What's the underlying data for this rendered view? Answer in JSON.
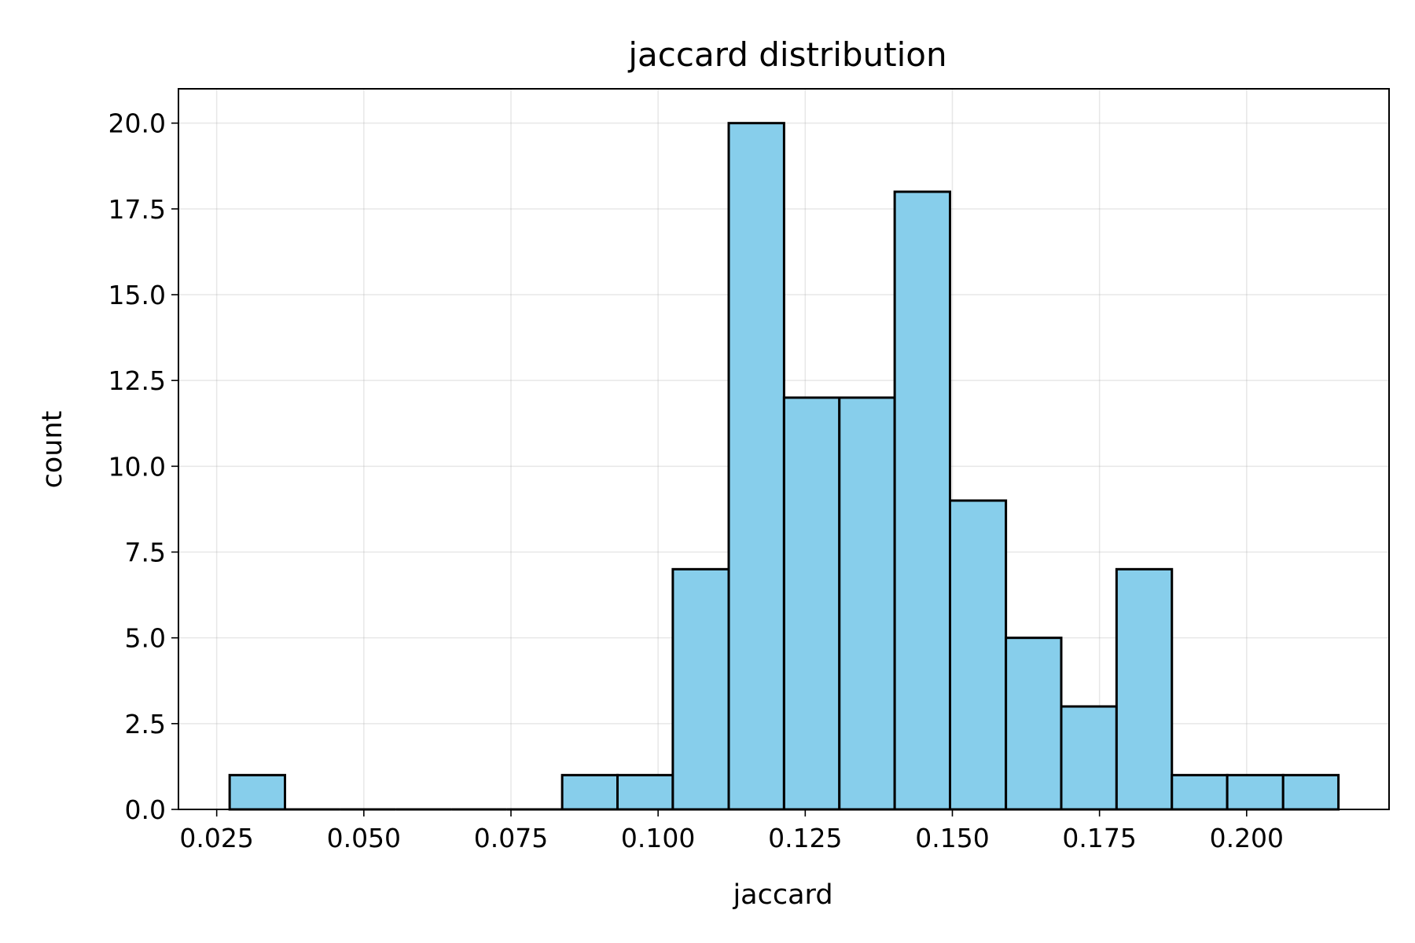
{
  "chart_data": {
    "type": "bar",
    "title": "jaccard distribution",
    "xlabel": "jaccard",
    "ylabel": "count",
    "xlim": [
      0.0185,
      0.2242
    ],
    "ylim": [
      0,
      21
    ],
    "grid": true,
    "bar_color": "#87CEEB",
    "edge_color": "#000000",
    "x_ticks": [
      "0.025",
      "0.050",
      "0.075",
      "0.100",
      "0.125",
      "0.150",
      "0.175",
      "0.200"
    ],
    "y_ticks": [
      "0.0",
      "2.5",
      "5.0",
      "7.5",
      "10.0",
      "12.5",
      "15.0",
      "17.5",
      "20.0"
    ],
    "bins": [
      {
        "x0": 0.0272,
        "x1": 0.0366,
        "count": 1
      },
      {
        "x0": 0.0366,
        "x1": 0.046,
        "count": 0
      },
      {
        "x0": 0.046,
        "x1": 0.0554,
        "count": 0
      },
      {
        "x0": 0.0554,
        "x1": 0.0649,
        "count": 0
      },
      {
        "x0": 0.0649,
        "x1": 0.0743,
        "count": 0
      },
      {
        "x0": 0.0743,
        "x1": 0.0837,
        "count": 0
      },
      {
        "x0": 0.0837,
        "x1": 0.0931,
        "count": 1
      },
      {
        "x0": 0.0931,
        "x1": 0.1025,
        "count": 1
      },
      {
        "x0": 0.1025,
        "x1": 0.112,
        "count": 7
      },
      {
        "x0": 0.112,
        "x1": 0.1214,
        "count": 20
      },
      {
        "x0": 0.1214,
        "x1": 0.1308,
        "count": 12
      },
      {
        "x0": 0.1308,
        "x1": 0.1402,
        "count": 12
      },
      {
        "x0": 0.1402,
        "x1": 0.1496,
        "count": 18
      },
      {
        "x0": 0.1496,
        "x1": 0.1591,
        "count": 9
      },
      {
        "x0": 0.1591,
        "x1": 0.1685,
        "count": 5
      },
      {
        "x0": 0.1685,
        "x1": 0.1779,
        "count": 3
      },
      {
        "x0": 0.1779,
        "x1": 0.1873,
        "count": 7
      },
      {
        "x0": 0.1873,
        "x1": 0.1967,
        "count": 1
      },
      {
        "x0": 0.1967,
        "x1": 0.2062,
        "count": 1
      },
      {
        "x0": 0.2062,
        "x1": 0.2156,
        "count": 1
      }
    ]
  }
}
